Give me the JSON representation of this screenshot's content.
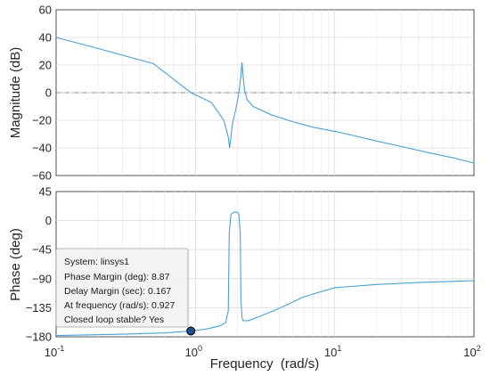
{
  "chart_data": [
    {
      "type": "line",
      "panel": "magnitude",
      "ylabel": "Magnitude (dB)",
      "xscale": "log",
      "xlim": [
        0.1,
        100
      ],
      "ylim": [
        -60,
        60
      ],
      "yticks": [
        60,
        40,
        20,
        0,
        -20,
        -40,
        -60
      ],
      "grid": true,
      "reference_line": 0,
      "series": [
        {
          "color": "#4a9fd8",
          "x": [
            0.1,
            0.2,
            0.5,
            0.93,
            1.3,
            1.6,
            1.72,
            1.76,
            1.8,
            1.85,
            1.95,
            2.05,
            2.12,
            2.16,
            2.2,
            2.25,
            2.35,
            2.6,
            3.5,
            5,
            7,
            10,
            15,
            20,
            30,
            50,
            70,
            100
          ],
          "y": [
            40,
            32,
            21,
            0,
            -7,
            -20,
            -32,
            -40,
            -32,
            -22,
            -12,
            0,
            12,
            22,
            12,
            2,
            -5,
            -10,
            -16,
            -21,
            -25,
            -28,
            -32,
            -35,
            -39,
            -44,
            -47,
            -51
          ]
        }
      ]
    },
    {
      "type": "line",
      "panel": "phase",
      "xlabel": "Frequency  (rad/s)",
      "ylabel": "Phase (deg)",
      "xscale": "log",
      "xlim": [
        0.1,
        100
      ],
      "ylim": [
        -180,
        45
      ],
      "yticks": [
        45,
        0,
        -45,
        -90,
        -135,
        -180
      ],
      "xticks": [
        {
          "base": "10",
          "exp": "-1",
          "value": 0.1
        },
        {
          "base": "10",
          "exp": "0",
          "value": 1
        },
        {
          "base": "10",
          "exp": "1",
          "value": 10
        },
        {
          "base": "10",
          "exp": "2",
          "value": 100
        }
      ],
      "grid": true,
      "series": [
        {
          "color": "#4a9fd8",
          "x": [
            0.1,
            0.3,
            0.6,
            0.927,
            1.2,
            1.5,
            1.65,
            1.72,
            1.75,
            1.8,
            1.9,
            2.0,
            2.05,
            2.1,
            2.12,
            2.16,
            2.2,
            2.4,
            3,
            4,
            6,
            10,
            20,
            40,
            100
          ],
          "y": [
            -178,
            -176,
            -174,
            -171,
            -168,
            -163,
            -158,
            -140,
            -20,
            10,
            13,
            13,
            10,
            -20,
            -120,
            -150,
            -155,
            -155,
            -147,
            -136,
            -118,
            -104,
            -99,
            -96,
            -93
          ]
        }
      ],
      "marker": {
        "x": 0.927,
        "y": -171
      }
    }
  ],
  "datatip": {
    "lines": [
      "System: linsys1",
      "Phase Margin (deg): 8.87",
      "Delay Margin (sec): 0.167",
      "At frequency (rad/s): 0.927",
      "Closed loop stable? Yes"
    ]
  }
}
